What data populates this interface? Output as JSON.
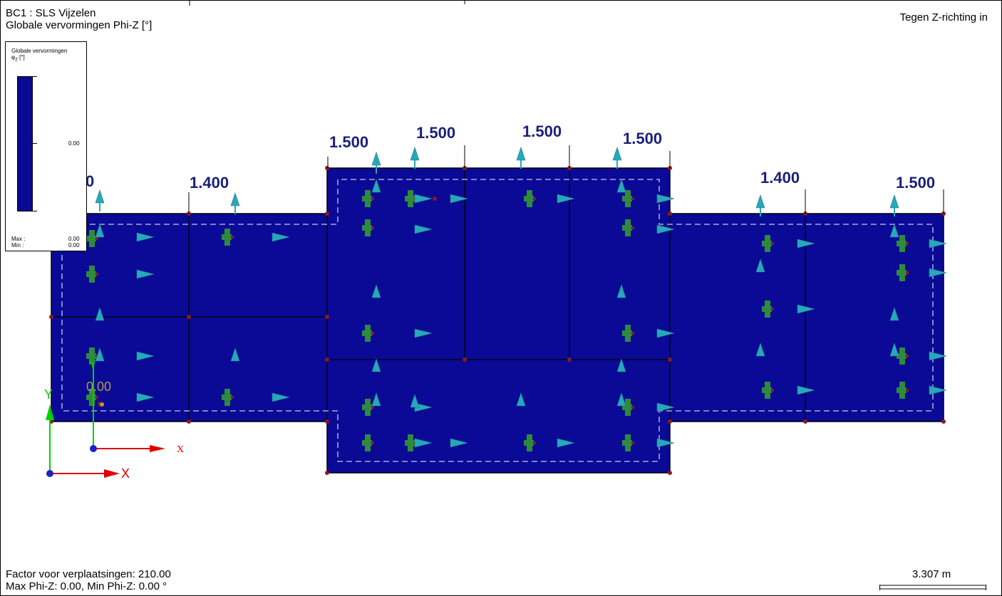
{
  "header": {
    "load_case": "BC1 : SLS Vijzelen",
    "quantity": "Globale vervormingen Phi-Z [°]",
    "view_direction": "Tegen Z-richting in"
  },
  "legend": {
    "title": "Globale vervormingen",
    "subtitle": "φ",
    "subtitle_sub": "Z",
    "subtitle_unit": " [°]",
    "mid_value": "0.00",
    "max_label": "Max :",
    "max_value": "0.00",
    "min_label": "Min :",
    "min_value": "0.00",
    "bar_color": "#0a0a96"
  },
  "footer": {
    "factor": "Factor voor verplaatsingen: 210.00",
    "summary": "Max Phi-Z: 0.00, Min Phi-Z: 0.00 °",
    "scale": "3.307 m"
  },
  "model": {
    "slab_color": "#0a0a96",
    "support_color": "#27a8b8",
    "spring_color": "#2e8b3c",
    "node_color": "#8b1a1a",
    "contour_label": "0.00",
    "dim_labels": [
      "0",
      "1.400",
      "1.500",
      "1.500",
      "1.500",
      "1.500",
      "1.400",
      "1.500"
    ]
  },
  "axes": {
    "global_x": "X",
    "global_y": "Y",
    "local_x": "X",
    "local_y": "Y"
  }
}
